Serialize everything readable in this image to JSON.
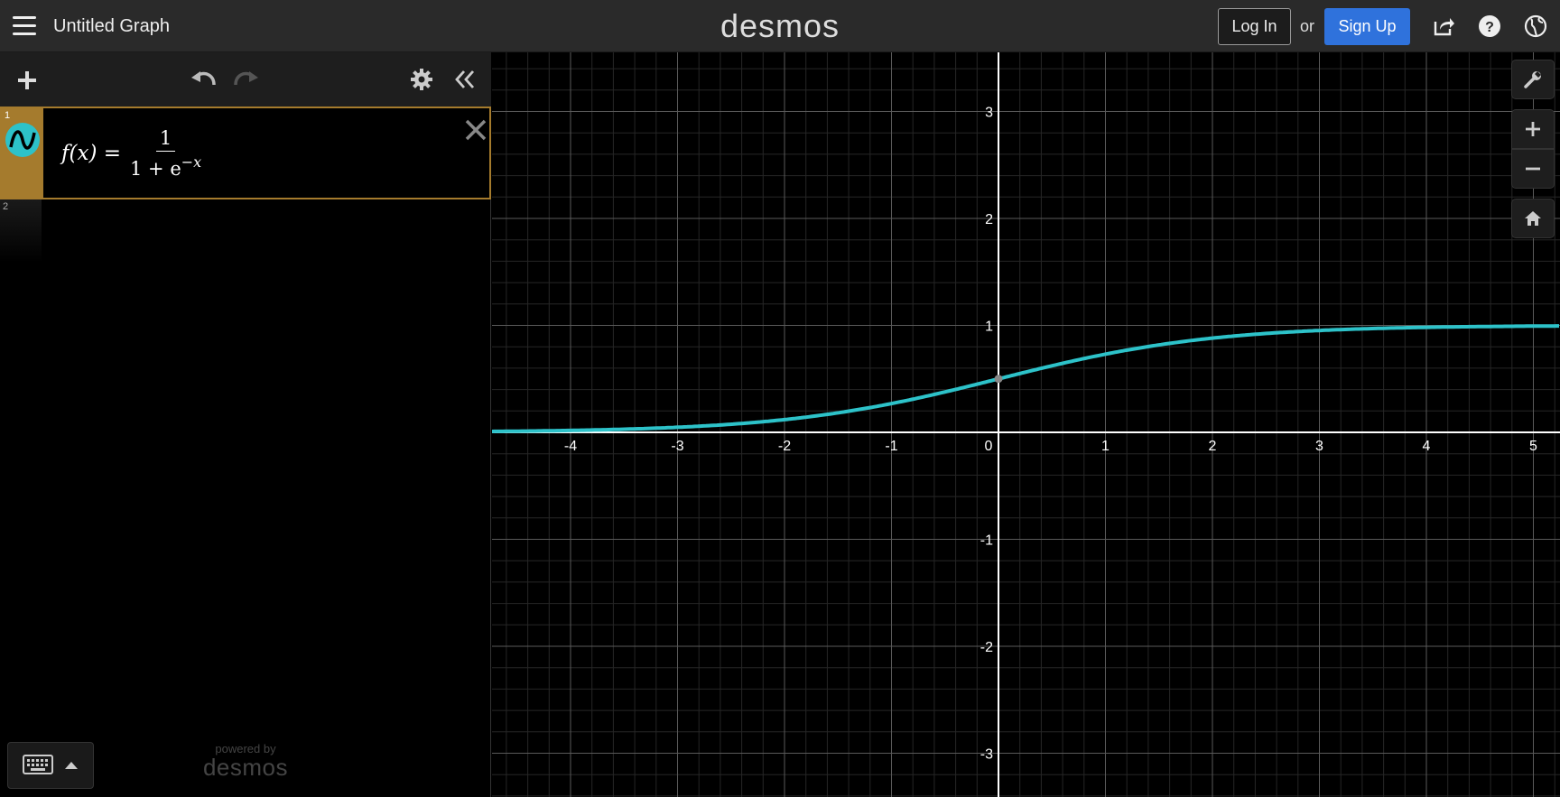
{
  "header": {
    "graph_title": "Untitled Graph",
    "brand": "desmos",
    "login_label": "Log In",
    "or_text": "or",
    "signup_label": "Sign Up"
  },
  "expressions": [
    {
      "index": "1",
      "lhs": "f(x) =",
      "numerator": "1",
      "denominator_base": "1 + e",
      "denominator_exp": "−x",
      "color": "#2dc2c9",
      "selected_color": "#a57b2d"
    },
    {
      "index": "2"
    }
  ],
  "footer": {
    "powered_by": "powered by",
    "brand": "desmos"
  },
  "graph": {
    "x_ticks": [
      "-4",
      "-3",
      "-2",
      "-1",
      "0",
      "1",
      "2",
      "3",
      "4",
      "5"
    ],
    "y_ticks": [
      "3",
      "2",
      "1",
      "-1",
      "-2",
      "-3"
    ],
    "curve_color": "#2dc2c9",
    "function": "sigmoid"
  },
  "icons": {
    "menu": "hamburger-icon",
    "share": "share-icon",
    "help": "help-icon",
    "language": "globe-icon",
    "add": "plus-icon",
    "undo": "undo-icon",
    "redo": "redo-icon",
    "settings": "gear-icon",
    "collapse": "double-chevron-left-icon",
    "wrench": "wrench-icon",
    "zoom_in": "zoom-in-icon",
    "zoom_out": "zoom-out-icon",
    "home": "home-icon",
    "keyboard": "keyboard-icon"
  }
}
